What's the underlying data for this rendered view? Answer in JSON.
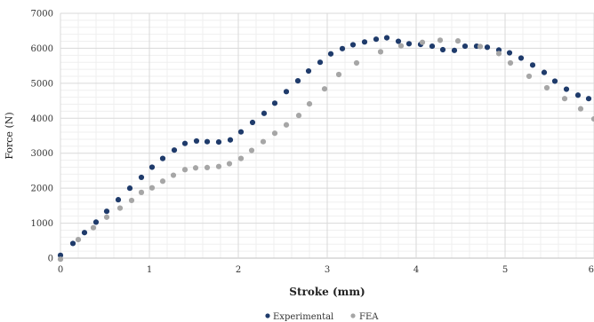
{
  "chart_data": {
    "type": "scatter",
    "xlabel": "Stroke (mm)",
    "ylabel": "Force (N)",
    "xlim": [
      0,
      6
    ],
    "ylim": [
      0,
      7000
    ],
    "x_ticks": [
      "0",
      "1",
      "2",
      "3",
      "4",
      "5",
      "6"
    ],
    "y_ticks": [
      "0",
      "1000",
      "2000",
      "3000",
      "4000",
      "5000",
      "6000",
      "7000"
    ],
    "grid": true,
    "legend_position": "bottom-center",
    "series": [
      {
        "name": "Experimental",
        "color": "#1f3b6b",
        "points": [
          [
            0.0,
            80
          ],
          [
            0.14,
            420
          ],
          [
            0.27,
            730
          ],
          [
            0.4,
            1030
          ],
          [
            0.52,
            1340
          ],
          [
            0.65,
            1670
          ],
          [
            0.78,
            2000
          ],
          [
            0.91,
            2310
          ],
          [
            1.03,
            2600
          ],
          [
            1.15,
            2850
          ],
          [
            1.28,
            3090
          ],
          [
            1.4,
            3280
          ],
          [
            1.53,
            3350
          ],
          [
            1.65,
            3330
          ],
          [
            1.78,
            3320
          ],
          [
            1.91,
            3380
          ],
          [
            2.03,
            3610
          ],
          [
            2.16,
            3880
          ],
          [
            2.29,
            4140
          ],
          [
            2.41,
            4430
          ],
          [
            2.54,
            4760
          ],
          [
            2.67,
            5070
          ],
          [
            2.79,
            5350
          ],
          [
            2.92,
            5600
          ],
          [
            3.04,
            5840
          ],
          [
            3.17,
            5990
          ],
          [
            3.29,
            6100
          ],
          [
            3.42,
            6180
          ],
          [
            3.55,
            6260
          ],
          [
            3.67,
            6300
          ],
          [
            3.8,
            6200
          ],
          [
            3.92,
            6130
          ],
          [
            4.05,
            6110
          ],
          [
            4.18,
            6060
          ],
          [
            4.3,
            5960
          ],
          [
            4.43,
            5940
          ],
          [
            4.55,
            6060
          ],
          [
            4.68,
            6060
          ],
          [
            4.8,
            6030
          ],
          [
            4.93,
            5950
          ],
          [
            5.05,
            5870
          ],
          [
            5.18,
            5720
          ],
          [
            5.31,
            5520
          ],
          [
            5.44,
            5310
          ],
          [
            5.56,
            5060
          ],
          [
            5.69,
            4830
          ],
          [
            5.82,
            4660
          ],
          [
            5.94,
            4560
          ]
        ]
      },
      {
        "name": "FEA",
        "color": "#a6a6a6",
        "points": [
          [
            0.0,
            -30
          ],
          [
            0.2,
            530
          ],
          [
            0.37,
            870
          ],
          [
            0.52,
            1170
          ],
          [
            0.67,
            1430
          ],
          [
            0.8,
            1650
          ],
          [
            0.91,
            1880
          ],
          [
            1.03,
            2010
          ],
          [
            1.15,
            2200
          ],
          [
            1.27,
            2370
          ],
          [
            1.4,
            2530
          ],
          [
            1.52,
            2580
          ],
          [
            1.65,
            2590
          ],
          [
            1.78,
            2620
          ],
          [
            1.9,
            2700
          ],
          [
            2.03,
            2850
          ],
          [
            2.15,
            3080
          ],
          [
            2.28,
            3330
          ],
          [
            2.41,
            3570
          ],
          [
            2.54,
            3810
          ],
          [
            2.68,
            4080
          ],
          [
            2.8,
            4410
          ],
          [
            2.97,
            4840
          ],
          [
            3.13,
            5250
          ],
          [
            3.33,
            5580
          ],
          [
            3.6,
            5900
          ],
          [
            3.83,
            6070
          ],
          [
            4.07,
            6170
          ],
          [
            4.27,
            6230
          ],
          [
            4.47,
            6210
          ],
          [
            4.72,
            6050
          ],
          [
            4.93,
            5850
          ],
          [
            5.06,
            5580
          ],
          [
            5.27,
            5200
          ],
          [
            5.47,
            4870
          ],
          [
            5.67,
            4560
          ],
          [
            5.85,
            4270
          ],
          [
            6.0,
            3980
          ]
        ]
      }
    ]
  }
}
